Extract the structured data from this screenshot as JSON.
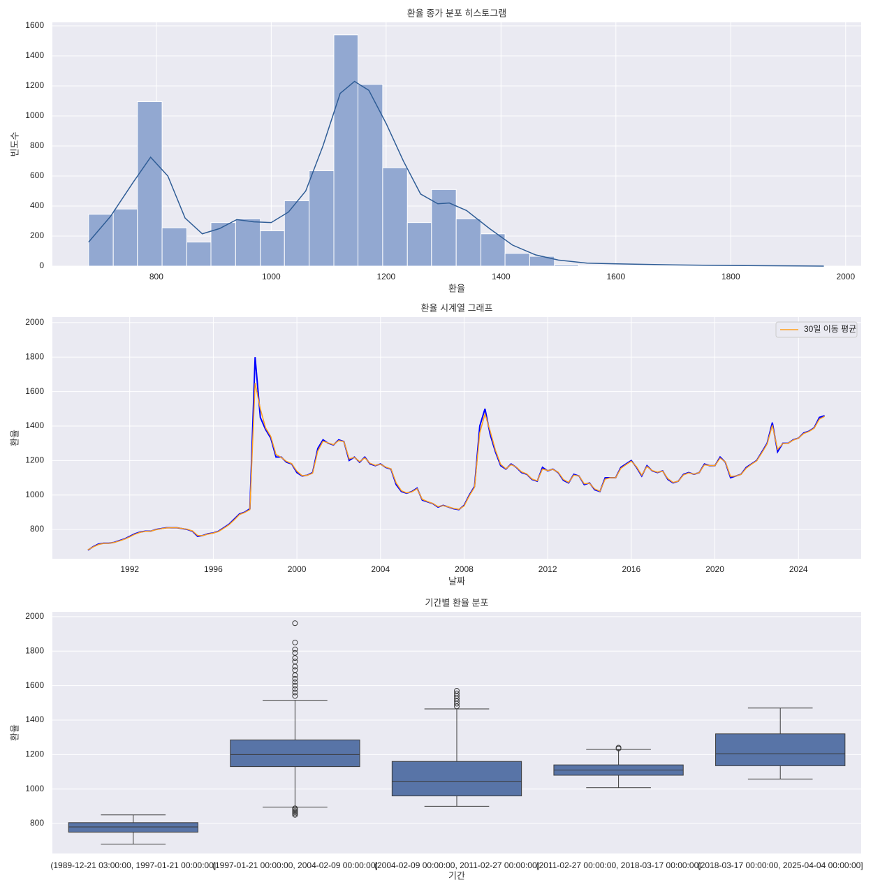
{
  "chart_data": [
    {
      "type": "histogram",
      "title": "환율 종가 분포 히스토그램",
      "x_label": "환율",
      "y_label": "빈도수",
      "bins": [
        682,
        725,
        767,
        810,
        853,
        895,
        938,
        981,
        1023,
        1066,
        1109,
        1151,
        1194,
        1237,
        1279,
        1322,
        1365,
        1407,
        1450,
        1493,
        1535,
        1578,
        1621,
        1663,
        1706,
        1749,
        1791,
        1834,
        1877,
        1919,
        1962
      ],
      "values": [
        345,
        380,
        1095,
        255,
        160,
        290,
        315,
        235,
        435,
        635,
        1540,
        1210,
        655,
        290,
        510,
        315,
        215,
        85,
        65,
        10,
        5,
        5,
        3,
        2,
        2,
        1,
        1,
        1,
        1,
        1
      ],
      "color": "#92a8d1",
      "kde": {
        "color": "#2f5d96",
        "x": [
          682,
          720,
          760,
          790,
          820,
          850,
          880,
          910,
          940,
          970,
          1000,
          1030,
          1060,
          1090,
          1120,
          1145,
          1170,
          1200,
          1230,
          1260,
          1290,
          1310,
          1340,
          1380,
          1420,
          1460,
          1500,
          1550,
          1600,
          1700,
          1800,
          1962
        ],
        "y": [
          160,
          330,
          560,
          725,
          600,
          320,
          215,
          250,
          310,
          295,
          290,
          360,
          500,
          800,
          1150,
          1230,
          1170,
          950,
          700,
          480,
          415,
          420,
          370,
          250,
          140,
          75,
          40,
          20,
          15,
          8,
          4,
          0
        ]
      },
      "xlim": [
        619,
        2027
      ],
      "xticks": [
        800,
        1000,
        1200,
        1400,
        1600,
        1800,
        2000
      ],
      "ylim": [
        0,
        1623
      ],
      "yticks": [
        0,
        200,
        400,
        600,
        800,
        1000,
        1200,
        1400,
        1600
      ],
      "grid": true
    },
    {
      "type": "line",
      "title": "환율 시계열 그래프",
      "x_label": "날짜",
      "y_label": "환율",
      "x": [
        1990,
        1990.25,
        1990.5,
        1990.75,
        1991,
        1991.25,
        1991.5,
        1991.75,
        1992,
        1992.25,
        1992.5,
        1992.75,
        1993,
        1993.25,
        1993.5,
        1993.75,
        1994,
        1994.25,
        1994.5,
        1994.75,
        1995,
        1995.25,
        1995.5,
        1995.75,
        1996,
        1996.25,
        1996.5,
        1996.75,
        1997,
        1997.25,
        1997.5,
        1997.75,
        1998,
        1998.25,
        1998.5,
        1998.75,
        1999,
        1999.25,
        1999.5,
        1999.75,
        2000,
        2000.25,
        2000.5,
        2000.75,
        2001,
        2001.25,
        2001.5,
        2001.75,
        2002,
        2002.25,
        2002.5,
        2002.75,
        2003,
        2003.25,
        2003.5,
        2003.75,
        2004,
        2004.25,
        2004.5,
        2004.75,
        2005,
        2005.25,
        2005.5,
        2005.75,
        2006,
        2006.25,
        2006.5,
        2006.75,
        2007,
        2007.25,
        2007.5,
        2007.75,
        2008,
        2008.25,
        2008.5,
        2008.75,
        2009,
        2009.25,
        2009.5,
        2009.75,
        2010,
        2010.25,
        2010.5,
        2010.75,
        2011,
        2011.25,
        2011.5,
        2011.75,
        2012,
        2012.25,
        2012.5,
        2012.75,
        2013,
        2013.25,
        2013.5,
        2013.75,
        2014,
        2014.25,
        2014.5,
        2014.75,
        2015,
        2015.25,
        2015.5,
        2015.75,
        2016,
        2016.25,
        2016.5,
        2016.75,
        2017,
        2017.25,
        2017.5,
        2017.75,
        2018,
        2018.25,
        2018.5,
        2018.75,
        2019,
        2019.25,
        2019.5,
        2019.75,
        2020,
        2020.25,
        2020.5,
        2020.75,
        2021,
        2021.25,
        2021.5,
        2021.75,
        2022,
        2022.25,
        2022.5,
        2022.75,
        2023,
        2023.25,
        2023.5,
        2023.75,
        2024,
        2024.25,
        2024.5,
        2024.75,
        2025,
        2025.25
      ],
      "series": [
        {
          "name": null,
          "color": "#0000ff",
          "values": [
            680,
            700,
            715,
            720,
            720,
            725,
            735,
            745,
            760,
            775,
            785,
            790,
            790,
            800,
            805,
            810,
            810,
            810,
            805,
            800,
            790,
            760,
            765,
            775,
            780,
            790,
            810,
            830,
            860,
            890,
            900,
            920,
            1800,
            1450,
            1380,
            1330,
            1220,
            1220,
            1190,
            1180,
            1130,
            1110,
            1115,
            1130,
            1270,
            1320,
            1300,
            1290,
            1320,
            1310,
            1200,
            1220,
            1190,
            1220,
            1180,
            1170,
            1180,
            1160,
            1150,
            1060,
            1020,
            1010,
            1020,
            1040,
            970,
            960,
            950,
            930,
            940,
            930,
            920,
            915,
            940,
            1000,
            1050,
            1400,
            1500,
            1350,
            1250,
            1170,
            1150,
            1180,
            1160,
            1130,
            1120,
            1090,
            1080,
            1160,
            1140,
            1150,
            1130,
            1085,
            1070,
            1120,
            1110,
            1060,
            1070,
            1030,
            1020,
            1100,
            1100,
            1100,
            1160,
            1180,
            1200,
            1160,
            1110,
            1170,
            1140,
            1130,
            1140,
            1090,
            1070,
            1080,
            1120,
            1130,
            1120,
            1130,
            1180,
            1170,
            1170,
            1220,
            1190,
            1100,
            1110,
            1120,
            1160,
            1180,
            1200,
            1250,
            1300,
            1420,
            1250,
            1300,
            1300,
            1320,
            1330,
            1360,
            1370,
            1390,
            1450,
            1460
          ]
        },
        {
          "name": "30일 이동 평균",
          "color": "#ff9f1c",
          "values": [
            682,
            698,
            712,
            719,
            720,
            724,
            733,
            743,
            757,
            772,
            783,
            789,
            790,
            798,
            804,
            809,
            810,
            810,
            806,
            801,
            792,
            765,
            764,
            773,
            779,
            788,
            807,
            827,
            855,
            886,
            898,
            915,
            1650,
            1500,
            1390,
            1340,
            1235,
            1218,
            1195,
            1182,
            1138,
            1112,
            1114,
            1126,
            1255,
            1312,
            1302,
            1292,
            1315,
            1310,
            1210,
            1218,
            1194,
            1215,
            1184,
            1172,
            1178,
            1162,
            1152,
            1070,
            1025,
            1012,
            1018,
            1036,
            975,
            962,
            951,
            933,
            938,
            931,
            922,
            917,
            936,
            995,
            1045,
            1360,
            1470,
            1370,
            1260,
            1178,
            1152,
            1176,
            1162,
            1134,
            1122,
            1093,
            1082,
            1150,
            1142,
            1148,
            1132,
            1090,
            1073,
            1115,
            1110,
            1065,
            1068,
            1035,
            1022,
            1092,
            1100,
            1100,
            1154,
            1176,
            1196,
            1164,
            1115,
            1165,
            1142,
            1132,
            1138,
            1095,
            1073,
            1080,
            1116,
            1128,
            1121,
            1130,
            1175,
            1171,
            1170,
            1214,
            1192,
            1108,
            1110,
            1119,
            1155,
            1178,
            1198,
            1245,
            1295,
            1405,
            1265,
            1298,
            1300,
            1318,
            1330,
            1356,
            1368,
            1387,
            1440,
            1456
          ]
        }
      ],
      "xlim": [
        1988.3,
        2027
      ],
      "xticks": [
        1992,
        1996,
        2000,
        2004,
        2008,
        2012,
        2016,
        2020,
        2024
      ],
      "ylim": [
        630,
        2032
      ],
      "yticks": [
        800,
        1000,
        1200,
        1400,
        1600,
        1800,
        2000
      ],
      "grid": true,
      "legend": "upper right"
    },
    {
      "type": "box",
      "title": "기간별 환율 분포",
      "x_label": "기간",
      "y_label": "환율",
      "categories": [
        "(1989-12-21 03:00:00, 1997-01-21 00:00:00]",
        "(1997-01-21 00:00:00, 2004-02-09 00:00:00]",
        "(2004-02-09 00:00:00, 2011-02-27 00:00:00]",
        "(2011-02-27 00:00:00, 2018-03-17 00:00:00]",
        "(2018-03-17 00:00:00, 2025-04-04 00:00:00]"
      ],
      "boxes": [
        {
          "whislo": 680,
          "q1": 750,
          "med": 780,
          "q3": 805,
          "whishi": 850,
          "fliers": []
        },
        {
          "whislo": 895,
          "q1": 1130,
          "med": 1200,
          "q3": 1285,
          "whishi": 1515,
          "fliers": [
            850,
            858,
            865,
            872,
            880,
            888,
            1540,
            1560,
            1580,
            1600,
            1620,
            1640,
            1660,
            1690,
            1710,
            1740,
            1760,
            1790,
            1810,
            1850,
            1962
          ]
        },
        {
          "whislo": 900,
          "q1": 960,
          "med": 1045,
          "q3": 1160,
          "whishi": 1465,
          "fliers": [
            1480,
            1495,
            1510,
            1525,
            1540,
            1555,
            1570
          ]
        },
        {
          "whislo": 1008,
          "q1": 1080,
          "med": 1110,
          "q3": 1140,
          "whishi": 1230,
          "fliers": [
            1235,
            1240
          ]
        },
        {
          "whislo": 1058,
          "q1": 1135,
          "med": 1205,
          "q3": 1320,
          "whishi": 1470,
          "fliers": []
        }
      ],
      "color": "#5874a7",
      "ylim": [
        626,
        2028
      ],
      "yticks": [
        800,
        1000,
        1200,
        1400,
        1600,
        1800,
        2000
      ],
      "grid": true
    }
  ]
}
